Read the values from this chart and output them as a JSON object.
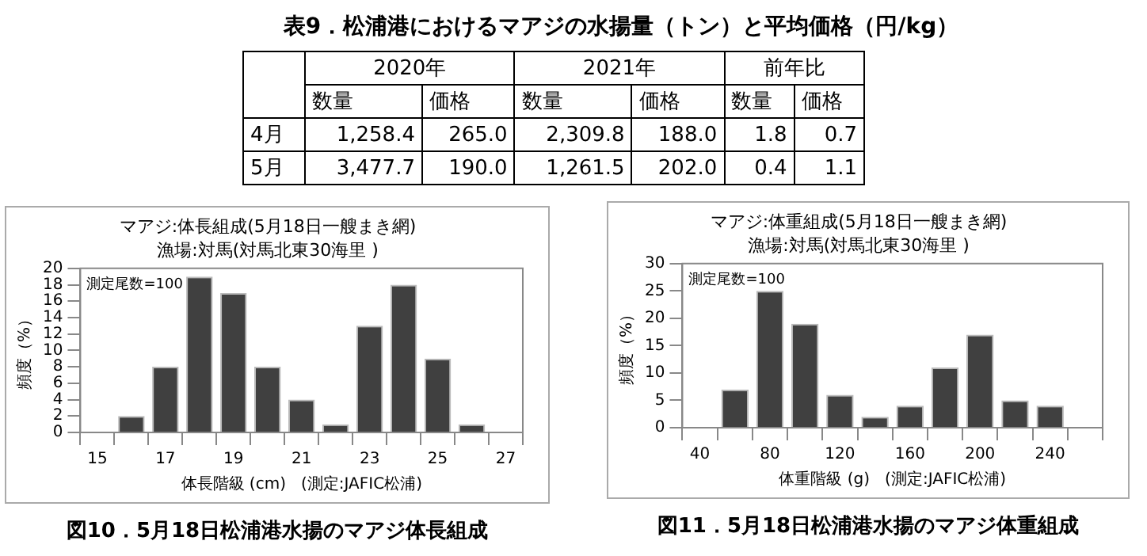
{
  "chart_data": [
    {
      "type": "other",
      "title": "表9．松浦港におけるマアジの水揚量（トン）と平均価格（円/kg）",
      "annotations": [
        "2020年",
        "2021年",
        "前年比",
        "数量",
        "価格",
        "数量",
        "価格",
        "数量",
        "価格",
        "4月",
        "1,258.4",
        "265.0",
        "2,309.8",
        "188.0",
        "1.8",
        "0.7",
        "5月",
        "3,477.7",
        "190.0",
        "1,261.5",
        "202.0",
        "0.4",
        "1.1"
      ]
    },
    {
      "type": "bar",
      "title": "マアジ:体長組成(5月18日一艘まき網)",
      "subtitle": "漁場:対馬(対馬北東30海里 )",
      "xlabel": "体長階級 (cm)   (測定:JAFIC松浦)",
      "ylabel": "頻度（%）",
      "categories": [
        "15",
        null,
        "17",
        null,
        "19",
        null,
        "21",
        null,
        "23",
        null,
        "25",
        null,
        "27"
      ],
      "values": [
        0,
        2,
        8,
        19,
        17,
        8,
        4,
        1,
        13,
        18,
        9,
        1,
        0
      ],
      "color": "#404040",
      "ylim": [
        0,
        20
      ],
      "yticks": [
        0,
        2,
        4,
        6,
        8,
        10,
        12,
        14,
        16,
        18,
        20
      ],
      "grid": false,
      "legend": false,
      "annotations": [
        "測定尾数=100",
        "図10．5月18日松浦港水揚のマアジ体長組成"
      ]
    },
    {
      "type": "bar",
      "title": "マアジ:体重組成(5月18日一艘まき網)",
      "subtitle": "漁場:対馬(対馬北東30海里 )",
      "xlabel": "体重階級 (g)   (測定:JAFIC松浦)",
      "ylabel": "頻度（%）",
      "categories": [
        "40",
        null,
        "80",
        null,
        "120",
        null,
        "160",
        null,
        "200",
        null,
        "240",
        null
      ],
      "values": [
        0,
        7,
        25,
        19,
        6,
        2,
        4,
        11,
        17,
        5,
        4,
        0
      ],
      "color": "#404040",
      "ylim": [
        0,
        30
      ],
      "yticks": [
        0,
        5,
        10,
        15,
        20,
        25,
        30
      ],
      "grid": false,
      "legend": false,
      "annotations": [
        "測定尾数=100",
        "図11．5月18日松浦港水揚のマアジ体重組成"
      ]
    }
  ]
}
